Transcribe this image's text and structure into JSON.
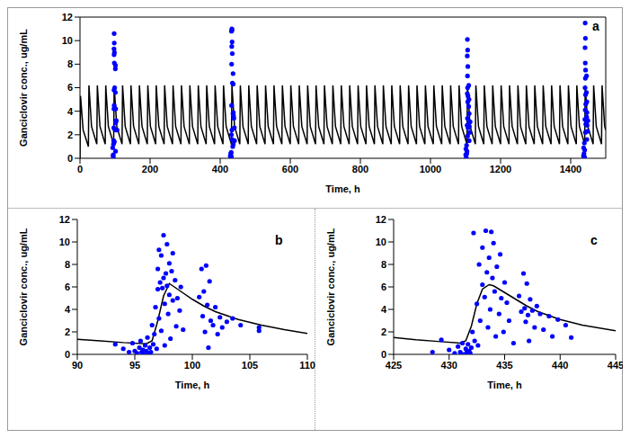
{
  "chart_data": [
    {
      "type": "line",
      "title": "a",
      "x_label": "Time, h",
      "y_label": "Ganciclovir conc., ug/mL",
      "xlim": [
        0,
        1500
      ],
      "xticks": [
        0,
        200,
        400,
        600,
        800,
        1000,
        1200,
        1400
      ],
      "ylim": [
        0,
        12
      ],
      "yticks": [
        0,
        2,
        4,
        6,
        8,
        10,
        12
      ],
      "series": [
        {
          "type": "line",
          "color": "#000000",
          "line_style": "solid",
          "x": [
            0,
            1.5,
            9,
            24,
            25.5,
            33,
            48,
            49.5,
            57,
            72,
            73.5,
            81,
            96,
            97.5,
            105,
            120,
            121.5,
            129,
            144,
            145.5,
            153,
            168,
            169.5,
            177,
            192,
            193.5,
            201,
            216,
            217.5,
            225,
            240,
            241.5,
            249,
            264,
            265.5,
            273,
            288,
            289.5,
            297,
            312,
            313.5,
            321,
            336,
            337.5,
            345,
            360,
            361.5,
            369,
            384,
            385.5,
            393,
            408,
            409.5,
            417,
            432,
            433.5,
            441,
            456,
            457.5,
            465,
            480,
            481.5,
            489,
            504,
            505.5,
            513,
            528,
            529.5,
            537,
            552,
            553.5,
            561,
            576,
            577.5,
            585,
            600,
            601.5,
            609,
            624,
            625.5,
            633,
            648,
            649.5,
            657,
            672,
            673.5,
            681,
            696,
            697.5,
            705,
            720,
            721.5,
            729,
            744,
            745.5,
            753,
            768,
            769.5,
            777,
            792,
            793.5,
            801,
            816,
            817.5,
            825,
            840,
            841.5,
            849,
            864,
            865.5,
            873,
            888,
            889.5,
            897,
            912,
            913.5,
            921,
            936,
            937.5,
            945,
            960,
            961.5,
            969,
            984,
            985.5,
            993,
            1008,
            1009.5,
            1017,
            1032,
            1033.5,
            1041,
            1056,
            1057.5,
            1065,
            1080,
            1081.5,
            1089,
            1104,
            1105.5,
            1113,
            1128,
            1129.5,
            1137,
            1152,
            1153.5,
            1161,
            1176,
            1177.5,
            1185,
            1200,
            1201.5,
            1209,
            1224,
            1225.5,
            1233,
            1248,
            1249.5,
            1257,
            1272,
            1273.5,
            1281,
            1296,
            1297.5,
            1305,
            1320,
            1321.5,
            1329,
            1344,
            1345.5,
            1353,
            1368,
            1369.5,
            1377,
            1392,
            1393.5,
            1401,
            1416,
            1417.5,
            1425,
            1440,
            1441.5,
            1449,
            1464,
            1465.5,
            1473,
            1488,
            1489.5,
            1497,
            1500
          ],
          "values": [
            0,
            5.3,
            2.4,
            1.0,
            6.2,
            2.7,
            1.2,
            6.2,
            2.7,
            1.2,
            6.2,
            2.7,
            1.2,
            6.2,
            2.7,
            1.2,
            6.2,
            2.7,
            1.2,
            6.2,
            2.7,
            1.2,
            6.2,
            2.7,
            1.2,
            6.2,
            2.7,
            1.2,
            6.2,
            2.7,
            1.2,
            6.2,
            2.7,
            1.2,
            6.2,
            2.7,
            1.2,
            6.2,
            2.7,
            1.2,
            6.2,
            2.7,
            1.2,
            6.2,
            2.7,
            1.2,
            6.2,
            2.7,
            1.2,
            6.2,
            2.7,
            1.2,
            6.2,
            2.7,
            1.2,
            6.2,
            2.7,
            1.2,
            6.2,
            2.7,
            1.2,
            6.2,
            2.7,
            1.2,
            6.2,
            2.7,
            1.2,
            6.2,
            2.7,
            1.2,
            6.2,
            2.7,
            1.2,
            6.2,
            2.7,
            1.2,
            6.2,
            2.7,
            1.2,
            6.2,
            2.7,
            1.2,
            6.2,
            2.7,
            1.2,
            6.2,
            2.7,
            1.2,
            6.2,
            2.7,
            1.2,
            6.2,
            2.7,
            1.2,
            6.2,
            2.7,
            1.2,
            6.2,
            2.7,
            1.2,
            6.2,
            2.7,
            1.2,
            6.2,
            2.7,
            1.2,
            6.2,
            2.7,
            1.2,
            6.2,
            2.7,
            1.2,
            6.2,
            2.7,
            1.2,
            6.2,
            2.7,
            1.2,
            6.2,
            2.7,
            1.2,
            6.2,
            2.7,
            1.2,
            6.2,
            2.7,
            1.2,
            6.2,
            2.7,
            1.2,
            6.2,
            2.7,
            1.2,
            6.2,
            2.7,
            1.2,
            6.2,
            2.7,
            1.2,
            6.2,
            2.7,
            1.2,
            6.2,
            2.7,
            1.2,
            6.2,
            2.7,
            1.2,
            6.2,
            2.7,
            1.2,
            6.2,
            2.7,
            1.2,
            6.2,
            2.7,
            1.2,
            6.2,
            2.7,
            1.2,
            6.2,
            2.7,
            1.2,
            6.2,
            2.7,
            1.2,
            6.2,
            2.7,
            1.2,
            6.2,
            2.7,
            1.2,
            6.2,
            2.7,
            1.2,
            6.2,
            2.7,
            1.2,
            6.2,
            2.7,
            1.2,
            6.2,
            2.7,
            1.2,
            6.2,
            2.7,
            1.2,
            6.2,
            2.7,
            2.4
          ]
        },
        {
          "type": "scatter",
          "color": "#0000ff",
          "marker": "circle",
          "x": [
            93.3,
            94.5,
            95.0,
            95.5,
            95.8,
            96.1,
            96.5,
            96.8,
            97.0,
            97.1,
            97.3,
            97.5,
            97.6,
            97.8,
            98.0,
            98.1,
            98.3,
            98.6,
            99.0,
            100.8,
            101.0,
            101.2,
            101.4,
            101.6,
            102.0,
            102.6,
            103.5,
            105.8,
            428.5,
            430.0,
            431.0,
            431.5,
            431.9,
            432.1,
            432.2,
            432.5,
            432.7,
            433.0,
            433.3,
            433.5,
            433.8,
            434.0,
            434.2,
            434.6,
            435.0,
            435.8,
            436.5,
            436.7,
            437.0,
            437.2,
            437.5,
            438.2,
            439.0,
            440.5,
            441.0,
            1100.5,
            1101,
            1102,
            1103,
            1103.5,
            1104,
            1104.5,
            1105,
            1105,
            1105.3,
            1105.5,
            1105.6,
            1105.8,
            1106,
            1106,
            1106.3,
            1106.5,
            1107,
            1107,
            1109,
            1109.2,
            1109.5,
            1110,
            1110.3,
            1110.5,
            1111,
            1112,
            1113,
            1436.5,
            1437,
            1438,
            1439,
            1439.5,
            1440,
            1440.5,
            1441,
            1441,
            1441.3,
            1441.5,
            1441.6,
            1441.8,
            1442,
            1442,
            1442.3,
            1442.5,
            1443,
            1443,
            1445,
            1445.2,
            1445.5,
            1446,
            1446.3,
            1446.5,
            1447,
            1448,
            1449
          ],
          "values": [
            0.9,
            0.2,
            0.3,
            1.2,
            0.0,
            1.5,
            2.6,
            4.2,
            5.8,
            9.3,
            8.8,
            10.6,
            4.5,
            9.8,
            8.1,
            1.4,
            9.0,
            2.5,
            6.0,
            7.6,
            5.6,
            7.9,
            0.6,
            3.0,
            4.2,
            2.4,
            3.2,
            2.4,
            0.2,
            0.4,
            0.2,
            0.5,
            0.1,
            2.0,
            10.8,
            4.5,
            8.0,
            9.5,
            11.0,
            2.4,
            10.9,
            9.9,
            1.6,
            8.9,
            6.4,
            1.0,
            3.8,
            7.2,
            6.3,
            1.2,
            3.9,
            3.6,
            3.4,
            2.6,
            1.5,
            0.3,
            0.8,
            0.1,
            1.1,
            0.4,
            0.6,
            2.8,
            5.5,
            8.7,
            10.1,
            3.4,
            7.0,
            6.0,
            9.2,
            1.9,
            4.8,
            7.8,
            5.3,
            2.6,
            4.4,
            6.2,
            3.0,
            5.0,
            1.5,
            3.8,
            2.7,
            2.2,
            3.1,
            0.2,
            0.9,
            0.4,
            1.3,
            0.1,
            0.7,
            3.3,
            6.0,
            9.4,
            11.5,
            4.1,
            8.1,
            6.8,
            10.2,
            2.2,
            5.4,
            7.5,
            4.6,
            2.9,
            5.6,
            7.0,
            3.5,
            4.8,
            1.6,
            3.9,
            2.8,
            2.3,
            3.2
          ]
        }
      ]
    },
    {
      "type": "line",
      "title": "b",
      "x_label": "Time, h",
      "y_label": "Ganciclovir conc., ug/mL",
      "xlim": [
        90,
        110
      ],
      "xticks": [
        90,
        95,
        100,
        105,
        110
      ],
      "ylim": [
        0,
        12
      ],
      "yticks": [
        0,
        2,
        4,
        6,
        8,
        10,
        12
      ],
      "series": [
        {
          "type": "line",
          "color": "#000000",
          "line_style": "solid",
          "x": [
            90,
            92,
            94,
            96,
            96.5,
            97,
            97.5,
            98,
            99,
            100,
            101,
            102,
            104,
            106,
            108,
            110
          ],
          "values": [
            1.35,
            1.2,
            1.05,
            0.95,
            1.2,
            3.0,
            5.2,
            6.3,
            5.6,
            4.9,
            4.3,
            3.8,
            3.1,
            2.6,
            2.2,
            1.85
          ]
        },
        {
          "type": "scatter",
          "color": "#0000ff",
          "marker": "circle",
          "x": [
            93.3,
            94.0,
            94.5,
            94.8,
            95.0,
            95.2,
            95.4,
            95.5,
            95.6,
            95.7,
            95.8,
            95.9,
            96.0,
            96.1,
            96.2,
            96.3,
            96.4,
            96.5,
            96.6,
            96.7,
            96.8,
            96.9,
            97.0,
            97.0,
            97.1,
            97.1,
            97.2,
            97.3,
            97.3,
            97.4,
            97.5,
            97.5,
            97.6,
            97.6,
            97.7,
            97.8,
            97.8,
            97.9,
            98.0,
            98.0,
            98.1,
            98.2,
            98.3,
            98.3,
            98.5,
            98.6,
            98.7,
            98.9,
            99.0,
            99.2,
            100.6,
            100.8,
            100.9,
            101.0,
            101.1,
            101.2,
            101.3,
            101.4,
            101.5,
            101.6,
            101.8,
            102.0,
            102.2,
            102.4,
            102.6,
            103.0,
            103.5,
            104.2,
            105.8,
            105.8
          ],
          "values": [
            0.9,
            0.5,
            0.2,
            1.0,
            0.3,
            0.1,
            0.6,
            1.2,
            0.2,
            0.4,
            0.0,
            0.8,
            0.3,
            1.5,
            0.1,
            0.6,
            0.2,
            2.6,
            0.9,
            1.8,
            4.2,
            0.5,
            5.8,
            7.6,
            3.2,
            9.3,
            6.4,
            2.1,
            8.8,
            5.9,
            10.6,
            6.8,
            4.5,
            0.8,
            7.2,
            9.8,
            6.1,
            3.6,
            8.1,
            5.3,
            1.4,
            7.4,
            9.0,
            4.8,
            6.6,
            2.5,
            5.0,
            3.9,
            6.0,
            2.2,
            5.1,
            7.6,
            3.4,
            5.6,
            2.0,
            7.9,
            4.4,
            0.6,
            6.5,
            3.0,
            2.6,
            4.2,
            1.8,
            3.3,
            2.4,
            2.9,
            3.2,
            2.6,
            2.4,
            2.1
          ]
        }
      ]
    },
    {
      "type": "line",
      "title": "c",
      "x_label": "Time, h",
      "y_label": "Ganciclovir conc., ug/mL",
      "xlim": [
        425,
        445
      ],
      "xticks": [
        425,
        430,
        435,
        440,
        445
      ],
      "ylim": [
        0,
        12
      ],
      "yticks": [
        0,
        2,
        4,
        6,
        8,
        10,
        12
      ],
      "series": [
        {
          "type": "line",
          "color": "#000000",
          "line_style": "solid",
          "x": [
            425,
            427,
            429,
            431,
            431.5,
            432,
            432.5,
            433,
            433.6,
            434,
            435,
            436,
            437,
            438,
            440,
            442,
            445
          ],
          "values": [
            1.5,
            1.3,
            1.15,
            1.0,
            1.2,
            2.5,
            4.5,
            5.8,
            6.2,
            6.1,
            5.5,
            4.9,
            4.3,
            3.8,
            3.1,
            2.6,
            2.1
          ]
        },
        {
          "type": "scatter",
          "color": "#0000ff",
          "marker": "circle",
          "x": [
            428.5,
            429.3,
            430.0,
            430.5,
            430.8,
            431.0,
            431.2,
            431.3,
            431.5,
            431.6,
            431.7,
            431.8,
            431.9,
            432.0,
            432.1,
            432.2,
            432.3,
            432.5,
            432.6,
            432.7,
            432.8,
            433.0,
            433.0,
            433.2,
            433.3,
            433.4,
            433.5,
            433.6,
            433.7,
            433.8,
            433.9,
            434.0,
            434.1,
            434.2,
            434.3,
            434.5,
            434.6,
            434.7,
            434.9,
            435.0,
            435.2,
            435.4,
            435.8,
            436.3,
            436.5,
            436.7,
            436.8,
            436.9,
            437.0,
            437.1,
            437.2,
            437.3,
            437.5,
            437.7,
            437.9,
            438.2,
            438.5,
            439.0,
            439.3,
            439.8,
            440.5,
            441.0
          ],
          "values": [
            0.2,
            1.3,
            0.4,
            0.1,
            0.7,
            0.2,
            1.0,
            0.0,
            0.5,
            0.2,
            0.9,
            0.3,
            0.1,
            0.6,
            2.0,
            10.8,
            1.2,
            4.5,
            0.8,
            8.0,
            3.0,
            9.5,
            6.2,
            5.1,
            11.0,
            7.3,
            2.4,
            8.6,
            4.0,
            10.9,
            6.8,
            9.9,
            5.6,
            1.6,
            7.8,
            3.6,
            8.9,
            5.0,
            2.0,
            6.4,
            4.6,
            3.0,
            1.0,
            5.2,
            3.8,
            7.2,
            4.1,
            2.9,
            6.3,
            3.5,
            1.2,
            4.9,
            3.9,
            2.4,
            4.3,
            3.6,
            2.2,
            3.4,
            1.6,
            3.1,
            2.6,
            1.5
          ]
        }
      ]
    }
  ]
}
